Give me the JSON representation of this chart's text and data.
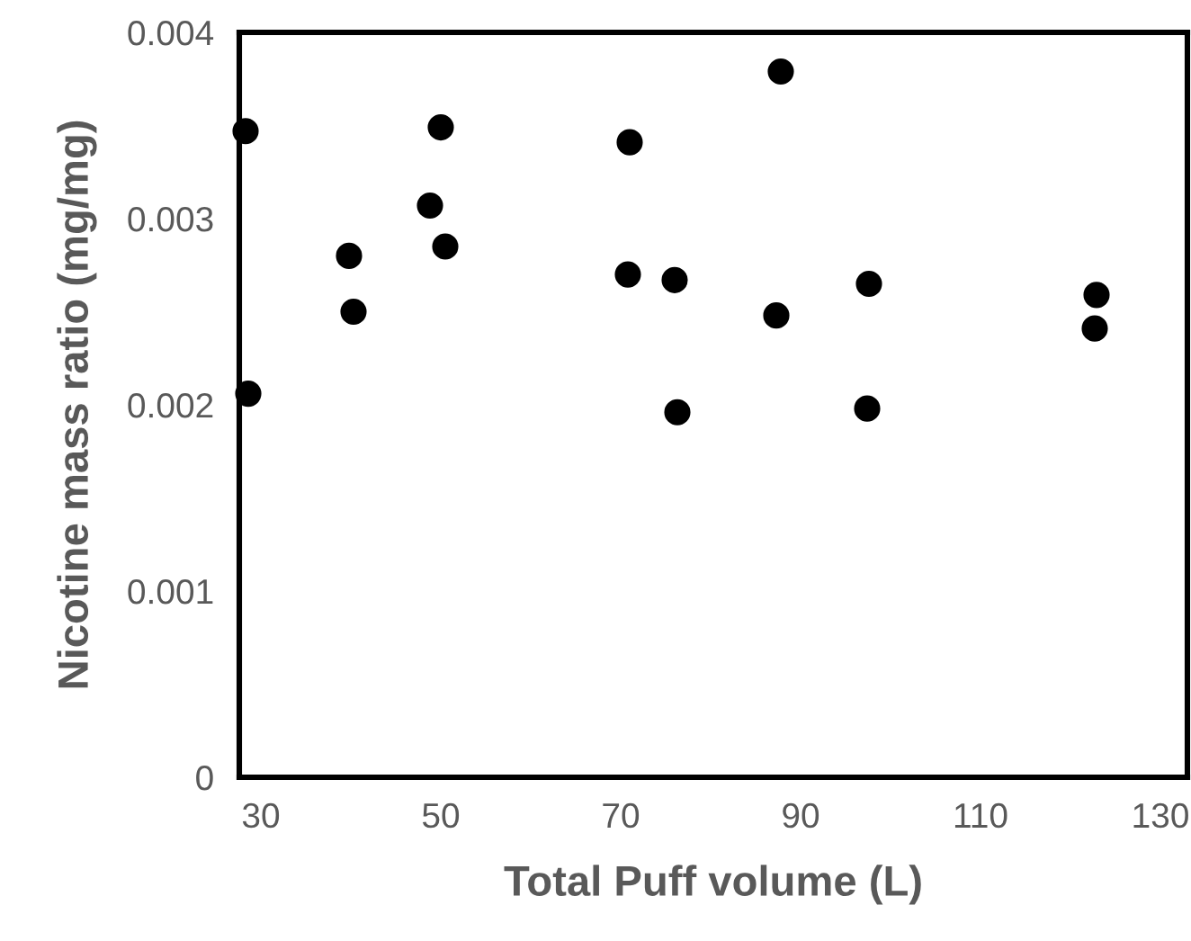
{
  "chart_data": {
    "type": "scatter",
    "xlabel": "Total Puff volume (L)",
    "ylabel": "Nicotine mass ratio (mg/mg)",
    "x": [
      28.3,
      28.6,
      50.0,
      48.8,
      50.5,
      39.8,
      40.3,
      71.0,
      70.8,
      76.0,
      76.3,
      87.8,
      87.3,
      97.6,
      97.4,
      122.9,
      122.7
    ],
    "series": [
      {
        "color": "#000000",
        "values": [
          0.00347,
          0.00206,
          0.00349,
          0.00307,
          0.00285,
          0.0028,
          0.0025,
          0.00341,
          0.0027,
          0.00267,
          0.00196,
          0.00379,
          0.00248,
          0.00265,
          0.00198,
          0.00259,
          0.00241
        ]
      }
    ],
    "xlim": [
      27.6,
      133
    ],
    "ylim": [
      0,
      0.004
    ],
    "xticks": [
      30,
      50,
      70,
      90,
      110,
      130
    ],
    "yticks": [
      0,
      0.001,
      0.002,
      0.003,
      0.004
    ],
    "marker": "circle",
    "grid": false,
    "legend": false
  }
}
